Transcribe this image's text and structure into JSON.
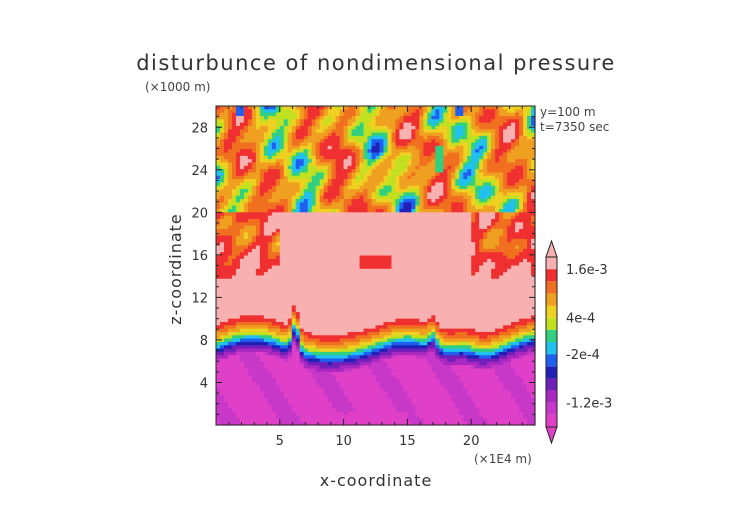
{
  "chart_data": {
    "type": "heatmap",
    "title": "disturbunce of nondimensional pressure",
    "y_unit_note": "(×1000 m)",
    "x_unit_note": "(×1E4 m)",
    "annotation_y": "y=100  m",
    "annotation_t": "t=7350 sec",
    "xlabel": "x-coordinate",
    "ylabel": "z-coordinate",
    "xlim": [
      0,
      25
    ],
    "ylim": [
      0,
      30
    ],
    "x_ticks": [
      5,
      10,
      15,
      20
    ],
    "y_ticks": [
      4,
      8,
      12,
      16,
      20,
      24,
      28
    ],
    "x_tick_labels": [
      "5",
      "10",
      "15",
      "20"
    ],
    "y_tick_labels": [
      "4",
      "8",
      "12",
      "16",
      "20",
      "24",
      "28"
    ],
    "colorbar_labels": [
      "1.6e-3",
      "4e-4",
      "-2e-4",
      "-1.2e-3"
    ],
    "colorbar_label_levels": [
      0.0016,
      0.0004,
      -0.0002,
      -0.0012
    ],
    "levels": [
      -0.0018,
      -0.0015,
      -0.0012,
      -0.0009,
      -0.0006,
      -0.0004,
      -0.0002,
      0,
      0.0002,
      0.0004,
      0.0006,
      0.0009,
      0.0012,
      0.0016,
      0.002
    ],
    "colors": [
      "#e040c8",
      "#c838c8",
      "#a828c0",
      "#7020b8",
      "#2020b8",
      "#2060f0",
      "#20c0f0",
      "#30d080",
      "#c0e020",
      "#f0d020",
      "#f0a020",
      "#f07020",
      "#f03030",
      "#f8b0b0"
    ],
    "z_lower": [
      [
        -0.0016,
        -0.0016,
        -0.0016,
        -0.0016,
        -0.0016,
        -0.0016,
        -0.0016,
        -0.0016,
        -0.0016,
        -0.0016,
        -0.0016,
        -0.0016,
        -0.0016,
        -0.0016,
        -0.0016,
        -0.0016,
        -0.0016,
        -0.0016,
        -0.0016,
        -0.0016,
        -0.0016,
        -0.0016,
        -0.0016,
        -0.0016,
        -0.0016,
        -0.0016
      ],
      [
        -0.0014,
        -0.0014,
        -0.0015,
        -0.0015,
        -0.0015,
        -0.0015,
        -0.0015,
        -0.0015,
        -0.0015,
        -0.0015,
        -0.0015,
        -0.0015,
        -0.0016,
        -0.0017,
        -0.0016,
        -0.0015,
        -0.0015,
        -0.0015,
        -0.0015,
        -0.0015,
        -0.0015,
        -0.0015,
        -0.0015,
        -0.0015,
        -0.0014,
        -0.0014
      ]
    ]
  }
}
